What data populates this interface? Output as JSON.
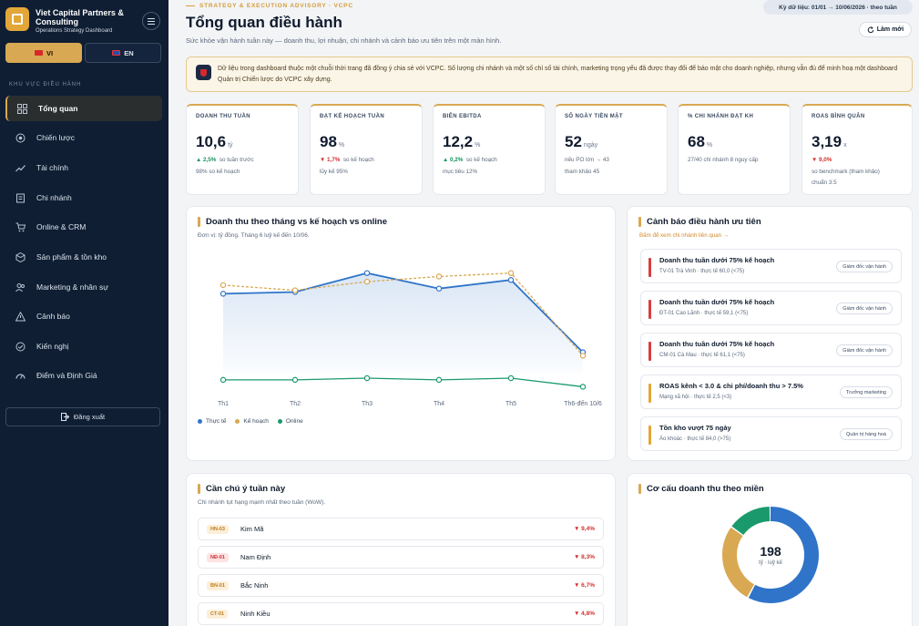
{
  "sidebar": {
    "brand_title": "Viet Capital Partners & Consulting",
    "brand_sub": "Operations Strategy Dashboard",
    "lang_vi": "VI",
    "lang_en": "EN",
    "section_label": "KHU VỰC ĐIỀU HÀNH",
    "items": [
      {
        "label": "Tổng quan",
        "icon": "grid-icon"
      },
      {
        "label": "Chiến lược",
        "icon": "target-icon"
      },
      {
        "label": "Tài chính",
        "icon": "trend-icon"
      },
      {
        "label": "Chi nhánh",
        "icon": "building-icon"
      },
      {
        "label": "Online & CRM",
        "icon": "cart-icon"
      },
      {
        "label": "Sản phẩm & tồn kho",
        "icon": "box-icon"
      },
      {
        "label": "Marketing & nhân sự",
        "icon": "users-icon"
      },
      {
        "label": "Cảnh báo",
        "icon": "warning-icon"
      },
      {
        "label": "Kiến nghị",
        "icon": "check-circle-icon"
      },
      {
        "label": "Điểm và Định Giá",
        "icon": "gauge-icon"
      }
    ],
    "logout": "Đăng xuất"
  },
  "header": {
    "eyebrow": "STRATEGY & EXECUTION ADVISORY · VCPC",
    "title": "Tổng quan điều hành",
    "subtitle": "Sức khỏe vận hành tuần này — doanh thu, lợi nhuận, chi nhánh và cảnh báo ưu tiên trên một màn hình.",
    "date_range": "Kỳ dữ liệu: 01/01 → 10/06/2026 · theo tuần",
    "refresh": "Làm mới"
  },
  "notice": "Dữ liệu trong dashboard thuộc một chuỗi thời trang đã đồng ý chia sẻ với VCPC. Số lượng chi nhánh và một số chỉ số tài chính, marketing trọng yếu đã được thay đổi để bảo mật cho doanh nghiệp, nhưng vẫn đủ để minh hoạ một dashboard Quản trị Chiến lược do VCPC xây dựng.",
  "kpis": [
    {
      "label": "DOANH THU TUẦN",
      "value": "10,6",
      "unit": "tỷ",
      "delta": "▲ 2,5%",
      "delta_dir": "up",
      "delta_note": "so tuần trước",
      "note": "98% so kế hoạch"
    },
    {
      "label": "ĐẠT KẾ HOẠCH TUẦN",
      "value": "98",
      "unit": "%",
      "delta": "▼ 1,7%",
      "delta_dir": "down",
      "delta_note": "so kế hoạch",
      "note": "lũy kế 95%"
    },
    {
      "label": "BIÊN EBITDA",
      "value": "12,2",
      "unit": "%",
      "delta": "▲ 0,2%",
      "delta_dir": "up",
      "delta_note": "so kế hoạch",
      "note": "mục tiêu 12%"
    },
    {
      "label": "SỐ NGÀY TIỀN MẶT",
      "value": "52",
      "unit": "ngày",
      "delta": "",
      "delta_dir": "",
      "delta_note": "nếu PO lớn → 43",
      "note": "tham khảo 45"
    },
    {
      "label": "% CHI NHÁNH ĐẠT KH",
      "value": "68",
      "unit": "%",
      "delta": "",
      "delta_dir": "",
      "delta_note": "27/40 chi nhánh    8 nguy cấp",
      "note": ""
    },
    {
      "label": "ROAS BÌNH QUÂN",
      "value": "3,19",
      "unit": "x",
      "delta": "▼ 9,0%",
      "delta_dir": "down",
      "delta_note": "",
      "note": "so benchmark (tham khảo)",
      "note2": "chuẩn 3.5"
    }
  ],
  "revenue_card": {
    "title": "Doanh thu theo tháng vs kế hoạch vs online",
    "subtitle": "Đơn vị: tỷ đồng. Tháng 6 luỹ kế đến 10/06."
  },
  "chart_data": {
    "type": "line",
    "categories": [
      "Th1",
      "Th2",
      "Th3",
      "Th4",
      "Th5",
      "Th6-đến 10/6"
    ],
    "series": [
      {
        "name": "Thực tế",
        "color": "#2f74c8",
        "values": [
          46,
          47,
          58,
          49,
          54,
          12
        ]
      },
      {
        "name": "Kế hoạch",
        "color": "#d9a852",
        "values": [
          51,
          48,
          53,
          56,
          58,
          10
        ]
      },
      {
        "name": "Online",
        "color": "#1a9a6c",
        "values": [
          -4,
          -4,
          -3,
          -4,
          -3,
          -8
        ]
      }
    ],
    "ylim": [
      -12,
      70
    ],
    "grid": false,
    "legend": "bottom-left"
  },
  "alerts_card": {
    "title": "Cảnh báo điều hành ưu tiên",
    "link": "Bấm để xem chi nhánh liên quan →",
    "items": [
      {
        "title": "Doanh thu tuần dưới 75% kế hoạch",
        "sub": "TV-01 Trà Vinh · thực tế 60,0 (<75)",
        "tag": "Giám đốc vận hành",
        "color": "#d64040"
      },
      {
        "title": "Doanh thu tuần dưới 75% kế hoạch",
        "sub": "ĐT-01 Cao Lãnh · thực tế 59,1 (<75)",
        "tag": "Giám đốc vận hành",
        "color": "#d64040"
      },
      {
        "title": "Doanh thu tuần dưới 75% kế hoạch",
        "sub": "CM-01 Cà Mau · thực tế 61,1 (<75)",
        "tag": "Giám đốc vận hành",
        "color": "#d64040"
      },
      {
        "title": "ROAS kênh < 3.0 & chi phí/doanh thu > 7.5%",
        "sub": "Mạng xã hội · thực tế 2,5 (<3)",
        "tag": "Trưởng marketing",
        "color": "#e3a638"
      },
      {
        "title": "Tồn kho vượt 75 ngày",
        "sub": "Áo khoác · thực tế 84,0 (>75)",
        "tag": "Quản trị hàng hoá",
        "color": "#e3a638"
      }
    ]
  },
  "watch_card": {
    "title": "Cần chú ý tuần này",
    "subtitle": "Chi nhánh tụt hạng mạnh nhất theo tuần (WoW).",
    "items": [
      {
        "code": "HN-03",
        "name": "Kim Mã",
        "value": "▼ 9,4%",
        "tone": "amber"
      },
      {
        "code": "NĐ-01",
        "name": "Nam Định",
        "value": "▼ 8,3%",
        "tone": "red"
      },
      {
        "code": "BN-01",
        "name": "Bắc Ninh",
        "value": "▼ 6,7%",
        "tone": "amber"
      },
      {
        "code": "CT-01",
        "name": "Ninh Kiều",
        "value": "▼ 4,8%",
        "tone": "amber"
      }
    ]
  },
  "region_card": {
    "title": "Cơ cấu doanh thu theo miền",
    "total": "198",
    "total_label": "tỷ · luỹ kế",
    "slices": [
      {
        "value": 58,
        "color": "#2f74c8"
      },
      {
        "value": 27,
        "color": "#d9a852"
      },
      {
        "value": 15,
        "color": "#1a9a6c"
      }
    ]
  }
}
